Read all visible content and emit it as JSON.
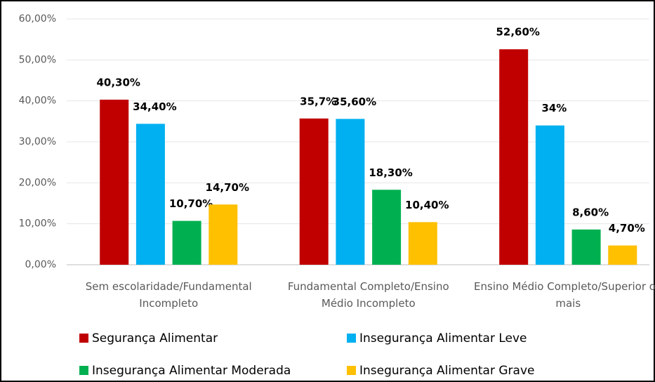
{
  "chart_data": {
    "type": "bar",
    "categories": [
      "Sem escolaridade/Fundamental Incompleto",
      "Fundamental Completo/Ensino Médio Incompleto",
      "Ensino Médio Completo/Superior ou mais"
    ],
    "series": [
      {
        "name": "Segurança Alimentar",
        "color": "#c00000",
        "values": [
          40.3,
          35.7,
          52.6
        ],
        "value_labels": [
          "40,30%",
          "35,7%",
          "52,60%"
        ]
      },
      {
        "name": "Insegurança Alimentar Leve",
        "color": "#00b0f0",
        "values": [
          34.4,
          35.6,
          34
        ],
        "value_labels": [
          "34,40%",
          "35,60%",
          "34%"
        ]
      },
      {
        "name": "Insegurança Alimentar Moderada",
        "color": "#00b050",
        "values": [
          10.7,
          18.3,
          8.6
        ],
        "value_labels": [
          "10,70%",
          "18,30%",
          "8,60%"
        ]
      },
      {
        "name": "Insegurança Alimentar Grave",
        "color": "#ffc000",
        "values": [
          14.7,
          10.4,
          4.7
        ],
        "value_labels": [
          "14,70%",
          "10,40%",
          "4,70%"
        ]
      }
    ],
    "ylim": [
      0,
      60
    ],
    "yticks": [
      {
        "value": 0,
        "label": "0,00%"
      },
      {
        "value": 10,
        "label": "10,00%"
      },
      {
        "value": 20,
        "label": "20,00%"
      },
      {
        "value": 30,
        "label": "30,00%"
      },
      {
        "value": 40,
        "label": "40,00%"
      },
      {
        "value": 50,
        "label": "50,00%"
      },
      {
        "value": 60,
        "label": "60,00%"
      }
    ],
    "grid": true
  }
}
